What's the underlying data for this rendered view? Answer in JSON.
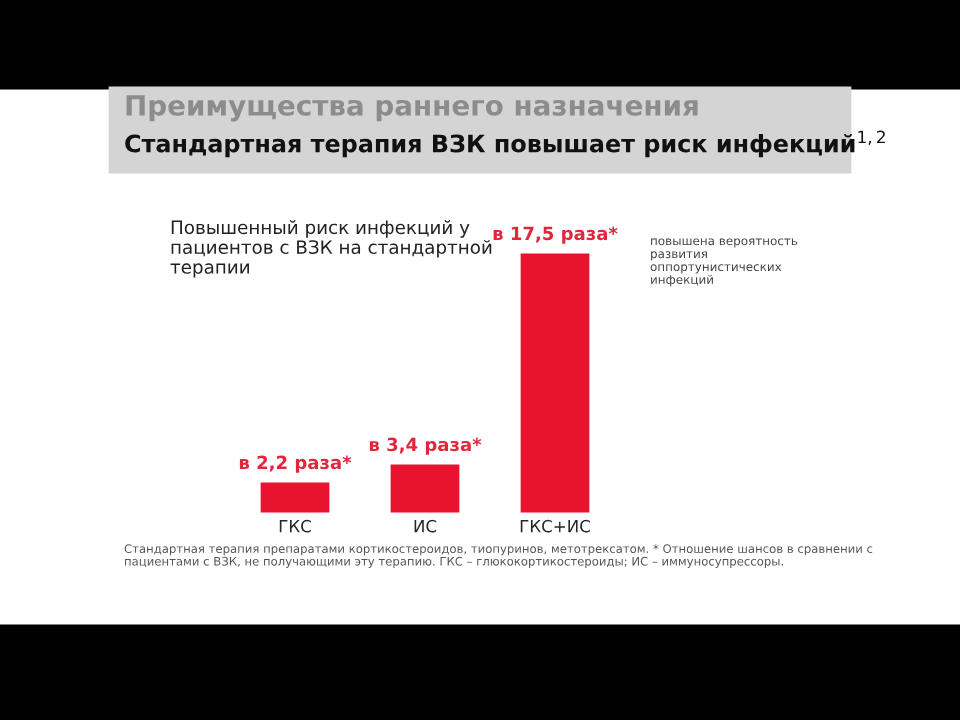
{
  "chart_data": {
    "type": "bar",
    "title": "Стандартная терапия ВЗК повышает риск инфекций$^{1,2}$",
    "subtitle": "Преимущества раннего назначения",
    "categories": [
      "ГКС",
      "ИС",
      "ГКС+ИС"
    ],
    "values": [
      2.2,
      3.4,
      17.5
    ],
    "color": "#e8132e",
    "value_labels": [
      "в 2,2 раза*",
      "в 3,4 раза*",
      "в 17,5 раза*"
    ],
    "grid": false,
    "annotations": [
      "Повышенный риск инфекций у\nпациентов с ВЗК на стандартной\nтерапии",
      "повышена вероятность\nразвития\nоппортунистических\nинфекций",
      "Стандартная терапия препаратами кортикостероидов, тиопуринов, метотрексатом. * Отношение шансов в сравнении с\nпациентами с ВЗК, не получающими эту терапию. ГКС – глюкокортикостероиды; ИС – иммуносупрессоры."
    ]
  }
}
